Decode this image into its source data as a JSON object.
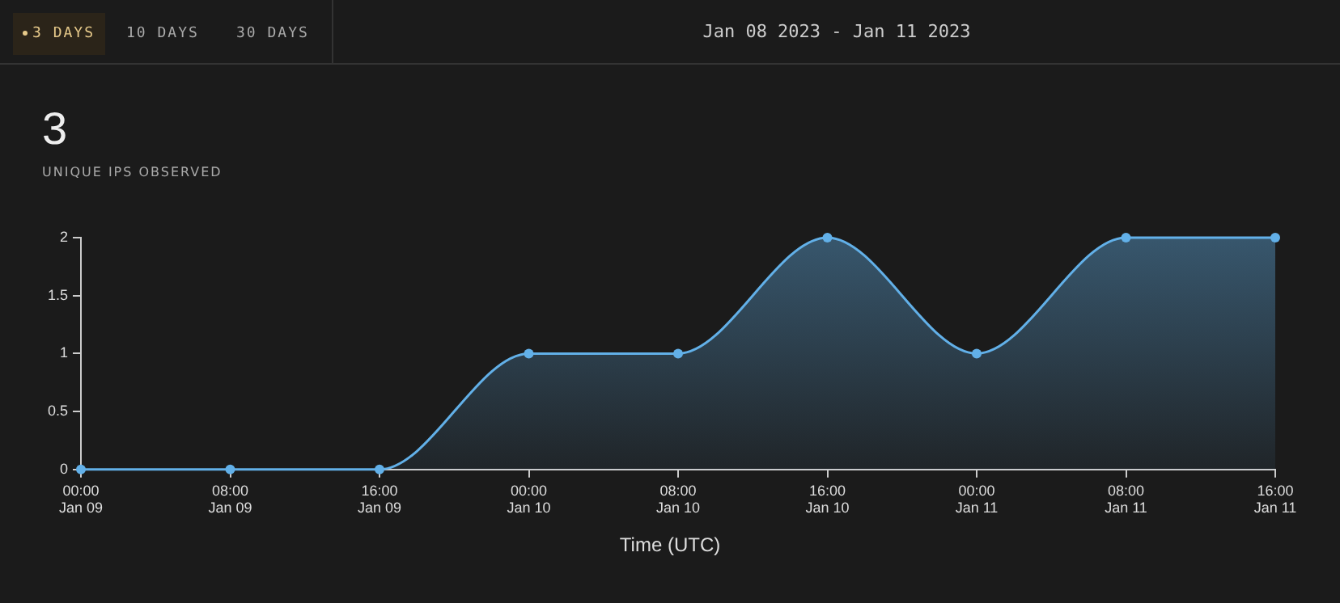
{
  "chart_data": {
    "type": "area",
    "title": "3",
    "subtitle": "UNIQUE IPS OBSERVED",
    "xlabel": "Time (UTC)",
    "annotations": [
      "3 DAYS",
      "10 DAYS",
      "30 DAYS",
      "Jan 08 2023 - Jan 11 2023"
    ],
    "x": [
      "2023-01-09T00:00",
      "2023-01-09T08:00",
      "2023-01-09T16:00",
      "2023-01-10T00:00",
      "2023-01-10T08:00",
      "2023-01-10T16:00",
      "2023-01-11T00:00",
      "2023-01-11T08:00",
      "2023-01-11T16:00"
    ],
    "series": [
      {
        "color": "#62b0e8",
        "values": [
          0,
          0,
          0,
          1,
          1,
          2,
          1,
          2,
          2
        ]
      }
    ],
    "xlim": [
      "2023-01-09T00:00",
      "2023-01-11T16:00"
    ],
    "xticks": [
      {
        "value": "2023-01-09T00:00",
        "label": "00:00\nJan 09"
      },
      {
        "value": "2023-01-09T08:00",
        "label": "08:00\nJan 09"
      },
      {
        "value": "2023-01-09T16:00",
        "label": "16:00\nJan 09"
      },
      {
        "value": "2023-01-10T00:00",
        "label": "00:00\nJan 10"
      },
      {
        "value": "2023-01-10T08:00",
        "label": "08:00\nJan 10"
      },
      {
        "value": "2023-01-10T16:00",
        "label": "16:00\nJan 10"
      },
      {
        "value": "2023-01-11T00:00",
        "label": "00:00\nJan 11"
      },
      {
        "value": "2023-01-11T08:00",
        "label": "08:00\nJan 11"
      },
      {
        "value": "2023-01-11T16:00",
        "label": "16:00\nJan 11"
      }
    ],
    "ylim": [
      0,
      2
    ],
    "yticks": [
      0,
      0.5,
      1,
      1.5,
      2
    ],
    "marker": "circle",
    "grid": false,
    "legend": false
  }
}
